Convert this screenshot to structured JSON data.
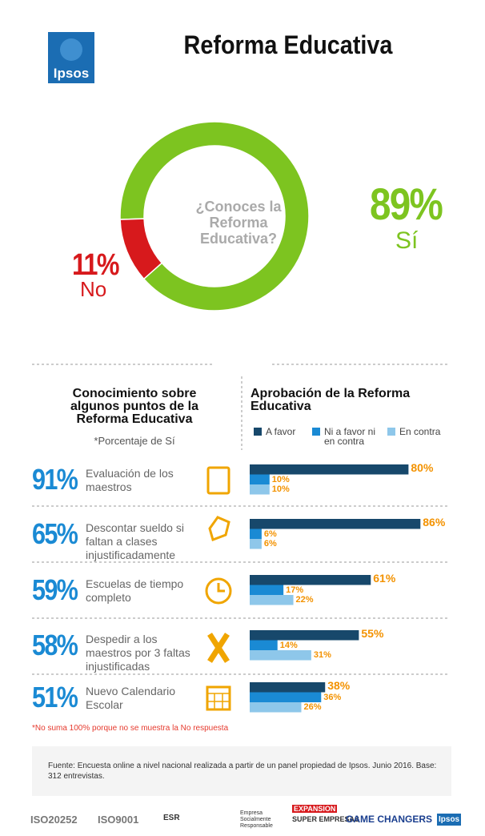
{
  "header": {
    "logo": "Ipsos",
    "title": "Reforma Educativa"
  },
  "chart_data": [
    {
      "type": "pie",
      "question": "¿Conoces la Reforma Educativa?",
      "categories": [
        "Sí",
        "No"
      ],
      "values": [
        89,
        11
      ],
      "value_labels": [
        "89%",
        "11%"
      ],
      "colors": [
        "#7dc420",
        "#d7191c"
      ]
    },
    {
      "type": "bar",
      "orientation": "horizontal",
      "title": "Aprobación de la Reforma Educativa",
      "categories": [
        "Evaluación de los maestros",
        "Descontar sueldo si faltan a clases injustificadamente",
        "Escuelas de tiempo completo",
        "Despedir a los maestros por 3 faltas injustificadas",
        "Nuevo Calendario Escolar"
      ],
      "xlim": [
        0,
        100
      ],
      "series": [
        {
          "name": "A favor",
          "color": "#17486b",
          "values": [
            80,
            86,
            61,
            55,
            38
          ],
          "value_labels": [
            "80%",
            "86%",
            "61%",
            "55%",
            "38%"
          ]
        },
        {
          "name": "Ni a favor ni en contra",
          "color": "#1a8ad4",
          "values": [
            10,
            6,
            17,
            14,
            36
          ],
          "value_labels": [
            "10%",
            "6%",
            "17%",
            "14%",
            "36%"
          ]
        },
        {
          "name": "En contra",
          "color": "#8ec7ea",
          "values": [
            10,
            6,
            22,
            31,
            26
          ],
          "value_labels": [
            "10%",
            "6%",
            "22%",
            "31%",
            "26%"
          ]
        }
      ]
    }
  ],
  "knowledge": {
    "title": "Conocimiento sobre algunos puntos de la Reforma Educativa",
    "subtitle": "*Porcentaje de Sí",
    "values": [
      91,
      65,
      59,
      58,
      51
    ],
    "value_labels": [
      "91%",
      "65%",
      "59%",
      "58%",
      "51%"
    ]
  },
  "footnote": "*No suma 100% porque no se muestra la No respuesta",
  "source": "Fuente: Encuesta online a nivel nacional realizada a partir de un panel propiedad de Ipsos. Junio 2016. Base: 312 entrevistas.",
  "footer": {
    "logos": [
      "ISO20252",
      "ISO9001",
      "ESR",
      "Empresa Socialmente Responsable",
      "EXPANSION",
      "SUPER EMPRESAS",
      "GAME CHANGERS",
      "Ipsos"
    ]
  }
}
